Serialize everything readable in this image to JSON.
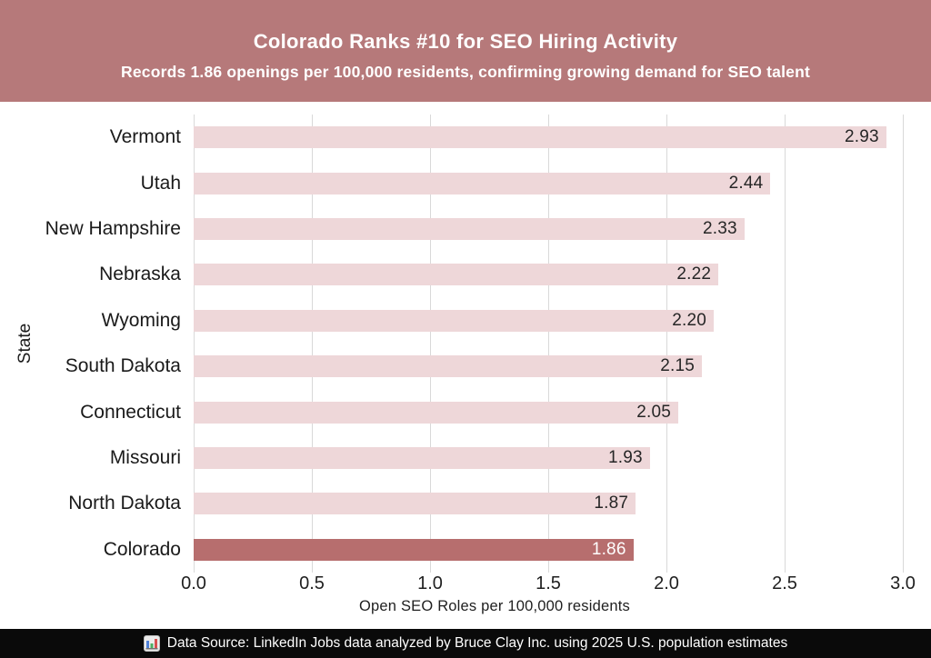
{
  "header": {
    "title": "Colorado Ranks #10 for SEO Hiring Activity",
    "subtitle": "Records 1.86 openings per 100,000 residents, confirming growing demand for SEO talent",
    "bg_color": "#b6797a",
    "text_color": "#ffffff"
  },
  "chart_data": {
    "type": "bar",
    "orientation": "horizontal",
    "title": "Colorado Ranks #10 for SEO Hiring Activity",
    "subtitle": "Records 1.86 openings per 100,000 residents, confirming growing demand for SEO talent",
    "categories": [
      "Vermont",
      "Utah",
      "New Hampshire",
      "Nebraska",
      "Wyoming",
      "South Dakota",
      "Connecticut",
      "Missouri",
      "North Dakota",
      "Colorado"
    ],
    "values": [
      2.93,
      2.44,
      2.33,
      2.22,
      2.2,
      2.15,
      2.05,
      1.93,
      1.87,
      1.86
    ],
    "value_labels": [
      "2.93",
      "2.44",
      "2.33",
      "2.22",
      "2.20",
      "2.15",
      "2.05",
      "1.93",
      "1.87",
      "1.86"
    ],
    "highlight_index": 9,
    "highlight_category": "Colorado",
    "xlabel": "Open SEO Roles per 100,000 residents",
    "ylabel": "State",
    "xlim": [
      0,
      3.0
    ],
    "xticks": [
      0,
      0.5,
      1.0,
      1.5,
      2.0,
      2.5,
      3.0
    ],
    "xtick_labels": [
      "0.0",
      "0.5",
      "1.0",
      "1.5",
      "2.0",
      "2.5",
      "3.0"
    ],
    "grid": "vertical-gridlines-only",
    "legend": "none",
    "colors": {
      "bar": "#eed7d9",
      "highlight_bar": "#b76e6e",
      "value_label": "#262626",
      "highlight_value_label": "#ffffff",
      "gridline": "#d9d9d9",
      "axis_text": "#1f1f1f",
      "plot_background": "#ffffff"
    }
  },
  "footer": {
    "icon": "bar-chart-icon",
    "text": "Data Source: LinkedIn Jobs data analyzed by Bruce Clay Inc. using 2025 U.S. population estimates",
    "bg_color": "#0a0a0a",
    "text_color": "#ffffff"
  }
}
